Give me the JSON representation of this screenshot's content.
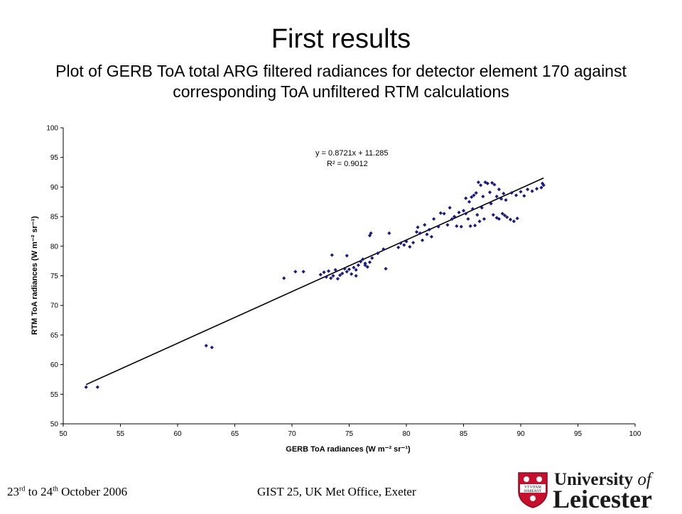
{
  "slide": {
    "title": "First results",
    "subtitle": "Plot of GERB ToA total ARG filtered radiances for detector element 170 against corresponding ToA unfiltered RTM calculations"
  },
  "footer": {
    "date_start_day": "23",
    "date_start_suffix": "rd",
    "date_to": " to ",
    "date_end_day": "24",
    "date_end_suffix": "th",
    "date_rest": " October 2006",
    "event": "GIST 25, UK Met Office, Exeter"
  },
  "logo": {
    "line1_main": "University ",
    "line1_of": "of",
    "line2": "Leicester",
    "shield_motto_1": "VT VITAM",
    "shield_motto_2": "HABEANT"
  },
  "colors": {
    "marker": "#1a1a80",
    "trendline": "#000000",
    "shield_red": "#c8102e"
  },
  "chart_data": {
    "type": "scatter",
    "xlabel": "GERB ToA radiances (W m⁻² sr⁻¹)",
    "ylabel": "RTM ToA radiances (W m⁻² sr⁻¹)",
    "xlim": [
      50,
      100
    ],
    "ylim": [
      50,
      100
    ],
    "x_ticks": [
      50,
      55,
      60,
      65,
      70,
      75,
      80,
      85,
      90,
      95,
      100
    ],
    "y_ticks": [
      50,
      55,
      60,
      65,
      70,
      75,
      80,
      85,
      90,
      95,
      100
    ],
    "grid": false,
    "legend": "none",
    "trendline": {
      "equation": "y = 0.8721x + 11.285",
      "r2": "R² = 0.9012",
      "slope": 0.8721,
      "intercept": 11.285,
      "x_range": [
        52,
        92
      ]
    },
    "points": [
      [
        52.0,
        56.2
      ],
      [
        53.0,
        56.2
      ],
      [
        62.5,
        63.2
      ],
      [
        63.0,
        62.9
      ],
      [
        69.3,
        74.6
      ],
      [
        70.3,
        75.7
      ],
      [
        71.0,
        75.7
      ],
      [
        72.5,
        75.2
      ],
      [
        72.8,
        75.6
      ],
      [
        73.0,
        74.8
      ],
      [
        73.2,
        75.8
      ],
      [
        73.4,
        74.6
      ],
      [
        73.6,
        75.0
      ],
      [
        73.8,
        76.0
      ],
      [
        74.0,
        74.5
      ],
      [
        74.2,
        75.1
      ],
      [
        74.4,
        75.4
      ],
      [
        74.6,
        76.2
      ],
      [
        74.8,
        75.7
      ],
      [
        75.0,
        76.1
      ],
      [
        75.2,
        75.3
      ],
      [
        75.4,
        76.4
      ],
      [
        75.6,
        76.0
      ],
      [
        75.8,
        76.8
      ],
      [
        76.0,
        77.4
      ],
      [
        76.2,
        77.8
      ],
      [
        76.4,
        77.1
      ],
      [
        76.6,
        76.5
      ],
      [
        76.8,
        77.3
      ],
      [
        77.0,
        78.0
      ],
      [
        73.5,
        78.5
      ],
      [
        74.8,
        78.4
      ],
      [
        75.6,
        75.0
      ],
      [
        76.4,
        76.8
      ],
      [
        76.8,
        81.8
      ],
      [
        76.9,
        82.2
      ],
      [
        77.5,
        78.8
      ],
      [
        78.0,
        79.5
      ],
      [
        78.2,
        76.2
      ],
      [
        78.5,
        82.2
      ],
      [
        79.3,
        79.8
      ],
      [
        79.5,
        80.5
      ],
      [
        79.8,
        80.2
      ],
      [
        80.0,
        80.8
      ],
      [
        80.3,
        79.9
      ],
      [
        80.6,
        80.6
      ],
      [
        80.9,
        82.4
      ],
      [
        81.0,
        83.2
      ],
      [
        81.2,
        82.2
      ],
      [
        81.4,
        81.0
      ],
      [
        81.6,
        83.6
      ],
      [
        81.8,
        82.0
      ],
      [
        82.0,
        82.8
      ],
      [
        82.2,
        81.6
      ],
      [
        82.4,
        84.6
      ],
      [
        82.8,
        83.3
      ],
      [
        83.0,
        85.6
      ],
      [
        83.3,
        85.5
      ],
      [
        83.6,
        83.6
      ],
      [
        83.8,
        86.5
      ],
      [
        84.0,
        84.6
      ],
      [
        84.2,
        85.0
      ],
      [
        84.4,
        83.4
      ],
      [
        84.6,
        85.7
      ],
      [
        84.8,
        83.3
      ],
      [
        85.0,
        86.0
      ],
      [
        85.2,
        85.5
      ],
      [
        85.4,
        84.6
      ],
      [
        85.6,
        83.4
      ],
      [
        85.8,
        86.3
      ],
      [
        86.0,
        83.5
      ],
      [
        86.2,
        85.3
      ],
      [
        86.4,
        84.2
      ],
      [
        86.6,
        86.5
      ],
      [
        86.8,
        84.6
      ],
      [
        85.2,
        88.1
      ],
      [
        85.5,
        87.5
      ],
      [
        85.7,
        88.3
      ],
      [
        85.9,
        88.6
      ],
      [
        86.1,
        89.0
      ],
      [
        86.3,
        90.8
      ],
      [
        86.5,
        90.3
      ],
      [
        86.7,
        88.4
      ],
      [
        86.9,
        90.8
      ],
      [
        87.1,
        90.6
      ],
      [
        87.3,
        89.1
      ],
      [
        87.5,
        90.7
      ],
      [
        87.7,
        90.4
      ],
      [
        87.9,
        88.4
      ],
      [
        88.1,
        89.6
      ],
      [
        88.3,
        88.0
      ],
      [
        88.5,
        88.9
      ],
      [
        88.7,
        87.8
      ],
      [
        87.4,
        87.2
      ],
      [
        87.6,
        85.3
      ],
      [
        87.9,
        84.8
      ],
      [
        88.1,
        84.6
      ],
      [
        88.4,
        85.5
      ],
      [
        88.6,
        85.2
      ],
      [
        88.8,
        84.9
      ],
      [
        89.1,
        84.5
      ],
      [
        89.4,
        84.2
      ],
      [
        89.7,
        84.7
      ],
      [
        89.2,
        89.0
      ],
      [
        89.6,
        88.6
      ],
      [
        90.0,
        89.2
      ],
      [
        90.3,
        88.5
      ],
      [
        90.6,
        89.6
      ],
      [
        91.0,
        89.3
      ],
      [
        91.4,
        89.7
      ],
      [
        91.8,
        89.9
      ],
      [
        92.0,
        90.3
      ],
      [
        91.9,
        90.6
      ]
    ]
  }
}
